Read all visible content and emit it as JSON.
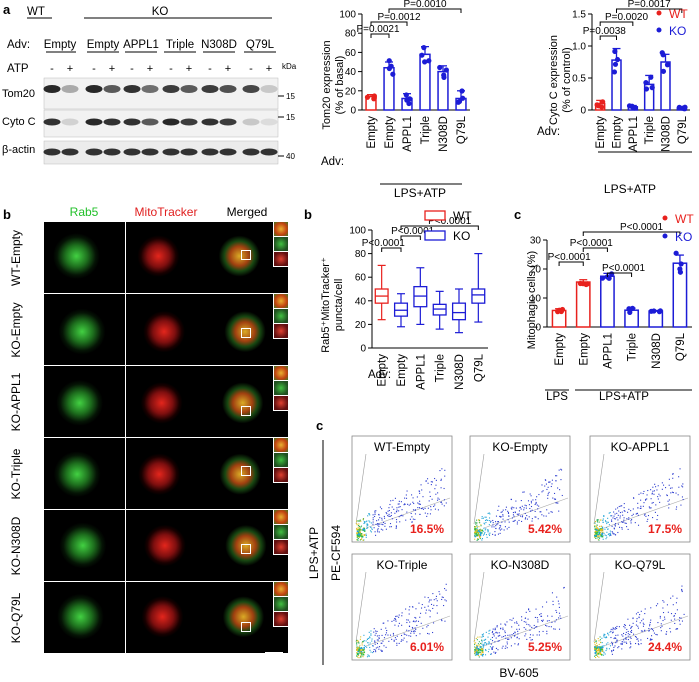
{
  "panels": {
    "a": "a",
    "b1": "b",
    "b2": "b",
    "c1": "c",
    "c2": "c"
  },
  "western": {
    "genotypes": [
      "WT",
      "KO"
    ],
    "adv_label": "Adv:",
    "adv_groups": [
      "Empty",
      "Empty",
      "APPL1",
      "Triple",
      "N308D",
      "Q79L"
    ],
    "atp_label": "ATP",
    "atp_signs": [
      "-",
      "+",
      "-",
      "+",
      "-",
      "+",
      "-",
      "+",
      "-",
      "+",
      "-",
      "+"
    ],
    "kda": "kDa",
    "rows": [
      {
        "name": "Tom20",
        "mw": "15"
      },
      {
        "name": "Cyto C",
        "mw": "15"
      },
      {
        "name": "β-actin",
        "mw": "40"
      }
    ],
    "band_intensity": {
      "Tom20": [
        0.95,
        0.3,
        0.95,
        0.7,
        0.9,
        0.6,
        0.85,
        0.7,
        0.85,
        0.75,
        0.8,
        0.15
      ],
      "Cyto C": [
        0.9,
        0.1,
        0.95,
        0.9,
        0.9,
        0.7,
        0.95,
        0.85,
        0.9,
        0.85,
        0.15,
        0.05
      ],
      "β-actin": [
        0.9,
        0.9,
        0.9,
        0.9,
        0.9,
        0.9,
        0.9,
        0.9,
        0.9,
        0.9,
        0.9,
        0.9
      ]
    }
  },
  "legend_top": {
    "wt": "WT",
    "ko": "KO"
  },
  "legend_b": {
    "wt": "WT",
    "ko": "KO"
  },
  "legend_c": {
    "wt": "WT",
    "ko": "KO"
  },
  "colors": {
    "wt": "#e8211d",
    "ko": "#1c1cd6",
    "green": "#22c02a",
    "red": "#e02020",
    "black": "#000000"
  },
  "chart_data": [
    {
      "type": "bar",
      "title": "",
      "ylabel": "Tom20 expression (% of basal)",
      "ylabel_lines": [
        "Tom20 expression",
        "(% of basal)"
      ],
      "ylim": [
        0,
        100
      ],
      "yticks": [
        "0",
        "20",
        "40",
        "60",
        "80",
        "100"
      ],
      "adv_label": "Adv:",
      "categories": [
        "Empty",
        "Empty",
        "APPL1",
        "Triple",
        "N308D",
        "Q79L"
      ],
      "genotype": [
        "WT",
        "KO",
        "KO",
        "KO",
        "KO",
        "KO"
      ],
      "values": [
        14,
        44,
        12,
        58,
        40,
        12
      ],
      "sem": [
        2,
        6,
        5,
        8,
        6,
        8
      ],
      "group_label": "LPS+ATP",
      "pvalues": [
        "P=0.0021",
        "P=0.0012",
        "P=0.0010"
      ]
    },
    {
      "type": "bar",
      "title": "",
      "ylabel": "Cyto C expression (% of control)",
      "ylabel_lines": [
        "Cyto C expression",
        "(% of control)"
      ],
      "ylim": [
        0,
        1.5
      ],
      "yticks": [
        "0",
        "0.5",
        "1.0",
        "1.5"
      ],
      "adv_label": "Adv:",
      "categories": [
        "Empty",
        "Empty",
        "APPL1",
        "Triple",
        "N308D",
        "Q79L"
      ],
      "genotype": [
        "WT",
        "KO",
        "KO",
        "KO",
        "KO",
        "KO"
      ],
      "values": [
        0.1,
        0.78,
        0.05,
        0.4,
        0.75,
        0.03
      ],
      "sem": [
        0.05,
        0.18,
        0.02,
        0.14,
        0.12,
        0.02
      ],
      "group_label": "LPS+ATP",
      "pvalues": [
        "P=0.0038",
        "P=0.0020",
        "P=0.0017"
      ]
    },
    {
      "type": "boxplot",
      "ylabel": "Rab5+MitoTracker+ puncta/cell",
      "ylabel_lines": [
        "Rab5⁺MitoTracker⁺",
        "puncta/cell"
      ],
      "ylim": [
        0,
        100
      ],
      "yticks": [
        "0",
        "20",
        "40",
        "60",
        "80",
        "100"
      ],
      "adv_label": "Adv:",
      "categories": [
        "Empty",
        "Empty",
        "APPL1",
        "Triple",
        "N308D",
        "Q79L"
      ],
      "genotype": [
        "WT",
        "KO",
        "KO",
        "KO",
        "KO",
        "KO"
      ],
      "min": [
        24,
        18,
        20,
        16,
        13,
        22
      ],
      "q1": [
        38,
        27,
        35,
        28,
        24,
        38
      ],
      "median": [
        44,
        32,
        44,
        33,
        30,
        45
      ],
      "q3": [
        50,
        38,
        52,
        37,
        38,
        50
      ],
      "max": [
        70,
        46,
        68,
        48,
        50,
        80
      ],
      "pvalues": [
        "P<0.0001",
        "P<0.0001",
        "P<0.0001"
      ]
    },
    {
      "type": "bar",
      "ylabel": "Mitophagic cells (%)",
      "ylim": [
        0,
        30
      ],
      "yticks": [
        "0",
        "10",
        "20",
        "30"
      ],
      "categories": [
        "Empty",
        "Empty",
        "APPL1",
        "Triple",
        "N308D",
        "Q79L"
      ],
      "genotype": [
        "WT",
        "WT",
        "KO",
        "KO",
        "KO",
        "KO"
      ],
      "treatment_labels": [
        "LPS",
        "LPS+ATP"
      ],
      "values": [
        5.7,
        15.5,
        17.5,
        5.8,
        5.5,
        22
      ],
      "sem": [
        0.6,
        0.8,
        1.0,
        0.7,
        0.2,
        2.8
      ],
      "pvalues": [
        "P<0.0001",
        "P<0.0001",
        "P<0.0001",
        "P<0.0001"
      ]
    }
  ],
  "microscopy": {
    "headers": [
      "Rab5",
      "MitoTracker",
      "Merged"
    ],
    "rows": [
      "WT-Empty",
      "KO-Empty",
      "KO-APPL1",
      "KO-Triple",
      "KO-N308D",
      "KO-Q79L"
    ]
  },
  "flow": {
    "side_label": "LPS+ATP",
    "ylabel": "PE-CF594",
    "xlabel": "BV-605",
    "plots": [
      {
        "name": "WT-Empty",
        "pct": "16.5%"
      },
      {
        "name": "KO-Empty",
        "pct": "5.42%"
      },
      {
        "name": "KO-APPL1",
        "pct": "17.5%"
      },
      {
        "name": "KO-Triple",
        "pct": "6.01%"
      },
      {
        "name": "KO-N308D",
        "pct": "5.25%"
      },
      {
        "name": "KO-Q79L",
        "pct": "24.4%"
      }
    ]
  }
}
